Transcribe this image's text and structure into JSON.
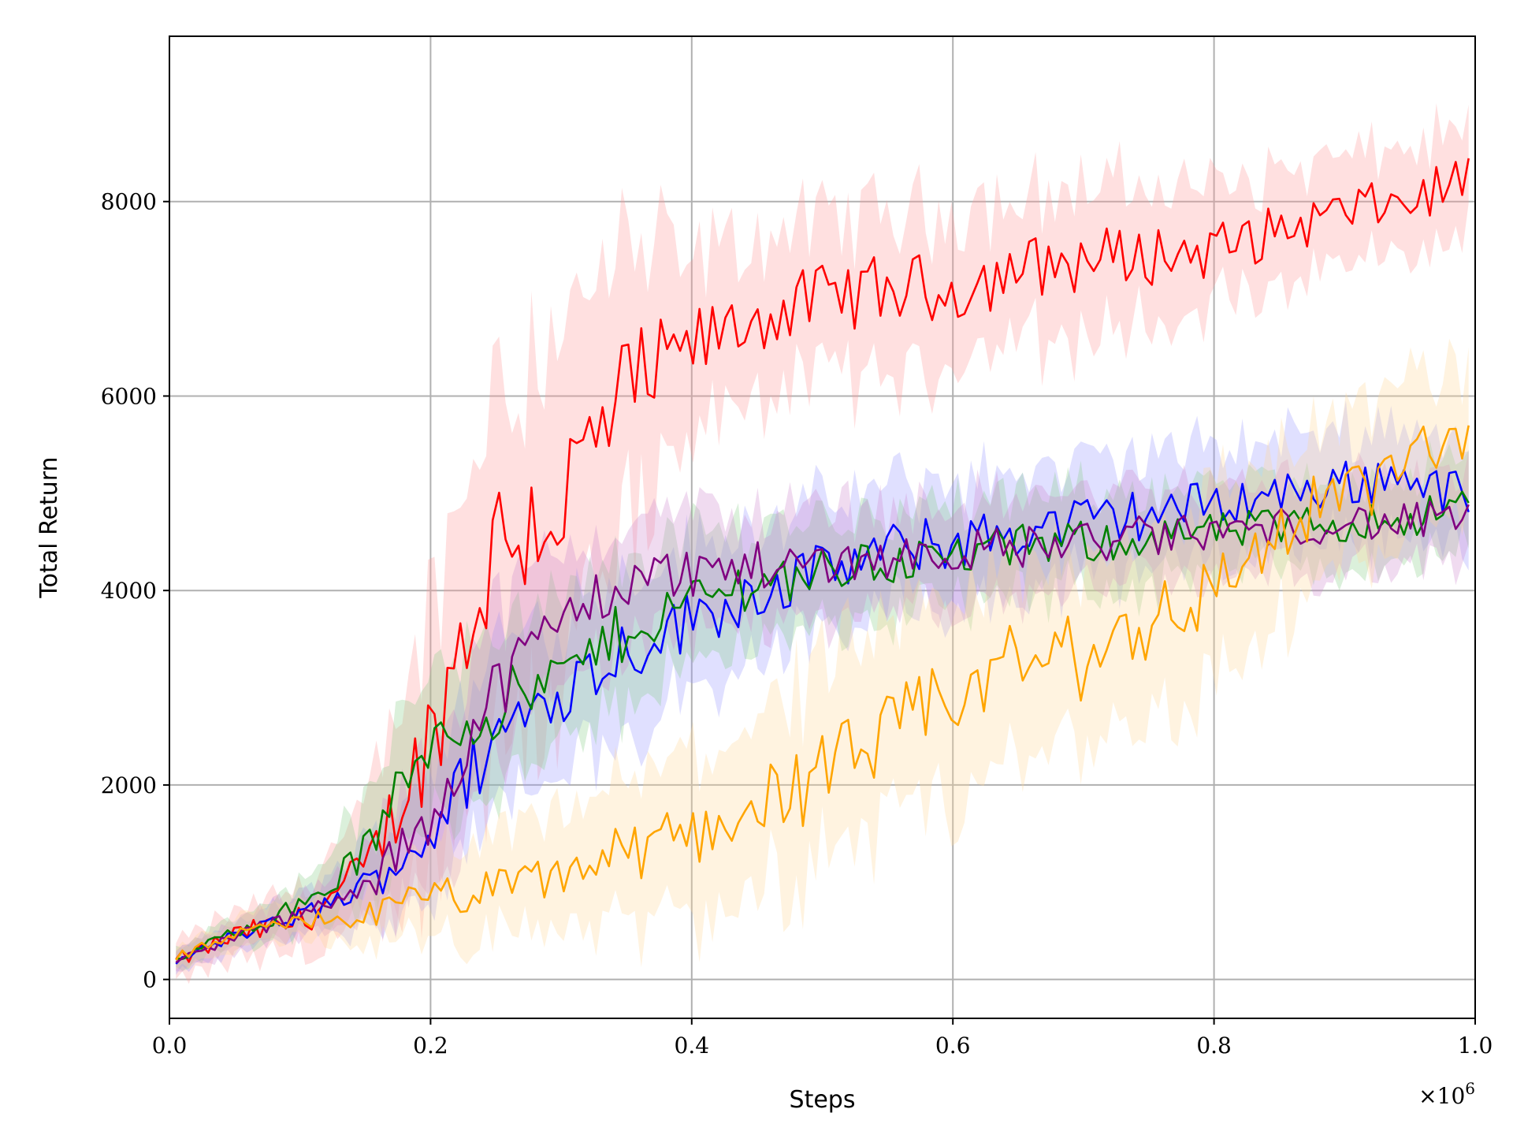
{
  "chart_data": {
    "type": "line",
    "title": "",
    "xlabel": "Steps",
    "ylabel": "Total Return",
    "x_offset_text": "×10",
    "x_offset_exp": "6",
    "xlim": [
      0.0,
      1.0
    ],
    "ylim": [
      -400,
      9700
    ],
    "xticks": [
      0.0,
      0.2,
      0.4,
      0.6,
      0.8,
      1.0
    ],
    "xtick_labels": [
      "0.0",
      "0.2",
      "0.4",
      "0.6",
      "0.8",
      "1.0"
    ],
    "yticks": [
      0,
      2000,
      4000,
      6000,
      8000
    ],
    "ytick_labels": [
      "0",
      "2000",
      "4000",
      "6000",
      "8000"
    ],
    "grid": true,
    "legend": "none",
    "x": [
      0.0,
      0.05,
      0.1,
      0.15,
      0.2,
      0.25,
      0.3,
      0.35,
      0.4,
      0.45,
      0.5,
      0.55,
      0.6,
      0.65,
      0.7,
      0.75,
      0.8,
      0.85,
      0.9,
      0.95,
      1.0
    ],
    "series": [
      {
        "color": "#ff0000",
        "band_color": "#ff9999",
        "values": [
          150,
          450,
          600,
          1100,
          2500,
          4500,
          4900,
          6000,
          6500,
          6800,
          7000,
          7100,
          7100,
          7300,
          7400,
          7450,
          7500,
          7700,
          7900,
          8000,
          8300
        ],
        "band": [
          180,
          250,
          350,
          600,
          1300,
          1800,
          1800,
          1500,
          900,
          800,
          800,
          800,
          800,
          750,
          750,
          700,
          650,
          600,
          550,
          550,
          500
        ]
      },
      {
        "color": "#0000ff",
        "band_color": "#9999ff",
        "values": [
          150,
          450,
          650,
          950,
          1500,
          2500,
          3000,
          3400,
          3700,
          4000,
          4200,
          4400,
          4500,
          4600,
          4700,
          4800,
          4900,
          5000,
          5100,
          5200,
          4900
        ],
        "band": [
          100,
          150,
          200,
          400,
          700,
          900,
          800,
          800,
          700,
          700,
          650,
          650,
          650,
          600,
          600,
          600,
          550,
          550,
          550,
          550,
          550
        ]
      },
      {
        "color": "#008000",
        "band_color": "#88cc88",
        "values": [
          150,
          500,
          750,
          1300,
          2500,
          2800,
          3100,
          3600,
          3900,
          4100,
          4200,
          4300,
          4350,
          4450,
          4500,
          4550,
          4600,
          4650,
          4700,
          4750,
          4900
        ],
        "band": [
          100,
          150,
          250,
          500,
          800,
          800,
          750,
          700,
          650,
          600,
          550,
          550,
          500,
          500,
          500,
          500,
          450,
          450,
          450,
          450,
          450
        ]
      },
      {
        "color": "#800080",
        "band_color": "#cc88cc",
        "values": [
          150,
          450,
          650,
          900,
          1700,
          3000,
          3700,
          4100,
          4200,
          4250,
          4300,
          4350,
          4400,
          4450,
          4500,
          4550,
          4600,
          4650,
          4700,
          4700,
          4750
        ],
        "band": [
          100,
          150,
          200,
          400,
          700,
          800,
          700,
          650,
          600,
          550,
          550,
          500,
          500,
          500,
          500,
          500,
          450,
          450,
          450,
          450,
          450
        ]
      },
      {
        "color": "#ffa500",
        "band_color": "#ffd699",
        "values": [
          200,
          450,
          600,
          650,
          850,
          900,
          1100,
          1300,
          1500,
          1800,
          2100,
          2500,
          2900,
          3300,
          3300,
          3700,
          4000,
          4600,
          5000,
          5300,
          5700
        ],
        "band": [
          100,
          150,
          200,
          300,
          500,
          500,
          600,
          700,
          800,
          900,
          1000,
          1000,
          1000,
          1000,
          1000,
          1000,
          900,
          900,
          800,
          800,
          700
        ]
      }
    ]
  }
}
